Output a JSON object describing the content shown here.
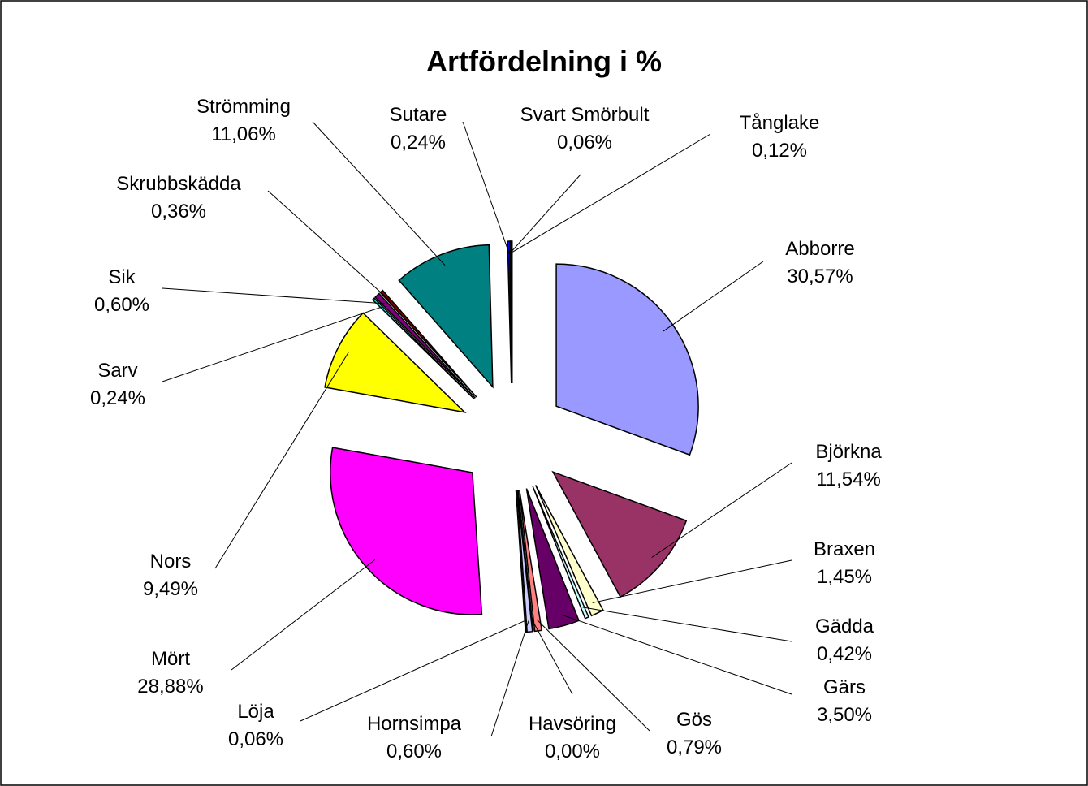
{
  "chart_data": {
    "type": "pie",
    "title": "Artfördelning i %",
    "categories": [
      "Abborre",
      "Björkna",
      "Braxen",
      "Gädda",
      "Gärs",
      "Gös",
      "Havsöring",
      "Hornsimpa",
      "Löja",
      "Mört",
      "Nors",
      "Sarv",
      "Sik",
      "Skrubbskädda",
      "Strömming",
      "Sutare",
      "Svart Smörbult",
      "Tånglake"
    ],
    "values": [
      30.57,
      11.54,
      1.45,
      0.42,
      3.5,
      0.79,
      0.0,
      0.6,
      0.06,
      28.88,
      9.49,
      0.24,
      0.6,
      0.36,
      11.06,
      0.24,
      0.06,
      0.12
    ],
    "value_labels": [
      "30,57%",
      "11,54%",
      "1,45%",
      "0,42%",
      "3,50%",
      "0,79%",
      "0,00%",
      "0,60%",
      "0,06%",
      "28,88%",
      "9,49%",
      "0,24%",
      "0,60%",
      "0,36%",
      "11,06%",
      "0,24%",
      "0,06%",
      "0,12%"
    ],
    "colors": [
      "#9999ff",
      "#993366",
      "#ffffcc",
      "#ccffff",
      "#660066",
      "#ff8080",
      "#0066cc",
      "#ccccff",
      "#000080",
      "#ff00ff",
      "#ffff00",
      "#00ffff",
      "#800080",
      "#800000",
      "#008080",
      "#0000ff",
      "#ccffff",
      "#ccffcc"
    ]
  }
}
